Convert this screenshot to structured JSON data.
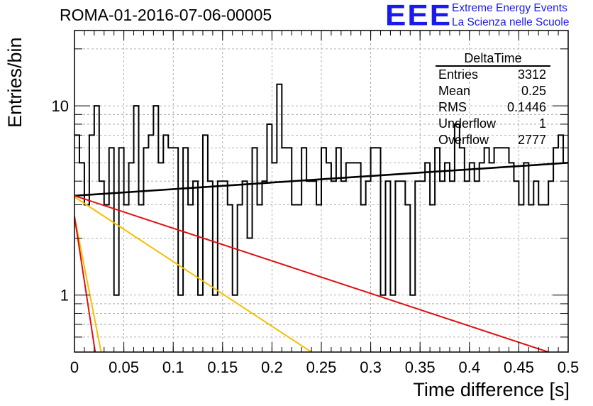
{
  "header": {
    "title": "ROMA-01-2016-07-06-00005",
    "logo_text": "EEE",
    "logo_line1": "Extreme Energy Events",
    "logo_line2": "La Scienza nelle Scuole"
  },
  "stats_box": {
    "name": "DeltaTime",
    "rows": [
      {
        "label": "Entries",
        "value": "3312"
      },
      {
        "label": "Mean",
        "value": "0.25"
      },
      {
        "label": "RMS",
        "value": "0.1446"
      },
      {
        "label": "Underflow",
        "value": "1"
      },
      {
        "label": "Overflow",
        "value": "2777"
      }
    ]
  },
  "colors": {
    "histogram": "#000000",
    "fit_black": "#000000",
    "fit_red": "#e01010",
    "fit_yellow": "#f5c000",
    "grid": "#9a9a9a"
  },
  "chart_data": {
    "type": "line",
    "title": "ROMA-01-2016-07-06-00005",
    "xlabel": "Time difference [s]",
    "ylabel": "Entries/bin",
    "xlim": [
      0,
      0.5
    ],
    "ylim": [
      0.5,
      25
    ],
    "yscale": "log",
    "grid": true,
    "legend": "top-right",
    "x_ticks": [
      "0",
      "0.05",
      "0.1",
      "0.15",
      "0.2",
      "0.25",
      "0.3",
      "0.35",
      "0.4",
      "0.45",
      "0.5"
    ],
    "y_ticks": [
      "1",
      "10"
    ],
    "histogram": {
      "bin_width": 0.005,
      "values": [
        7,
        5,
        3,
        7,
        10,
        4,
        3,
        6,
        1,
        6,
        3,
        5,
        10,
        3,
        6,
        7,
        10,
        5,
        7,
        6,
        6,
        1,
        6,
        3,
        4,
        1,
        7,
        4,
        1,
        4,
        4,
        3,
        1,
        3,
        4,
        2,
        6,
        3,
        4,
        8,
        5,
        13,
        6,
        6,
        3,
        3,
        6,
        4,
        4,
        3,
        6,
        5,
        4,
        6,
        4,
        5,
        5,
        5,
        3,
        4,
        6,
        6,
        1,
        4,
        1,
        4,
        4,
        3,
        1,
        4,
        4,
        5,
        3,
        6,
        4,
        5,
        4,
        8,
        6,
        4,
        5,
        4,
        5,
        6,
        5,
        6,
        6,
        6,
        5,
        4,
        3,
        5,
        3,
        4,
        3,
        3,
        4,
        6,
        7,
        5
      ]
    },
    "series": [
      {
        "color": "#000000",
        "x": [
          0,
          0.5
        ],
        "y": [
          3.35,
          5.0
        ]
      },
      {
        "color": "#e01010",
        "x": [
          0,
          0.48
        ],
        "y": [
          3.35,
          0.5
        ]
      },
      {
        "color": "#f5c000",
        "x": [
          0,
          0.24
        ],
        "y": [
          3.3,
          0.5
        ]
      },
      {
        "color": "#f5c000",
        "x": [
          0,
          0.027
        ],
        "y": [
          2.6,
          0.5
        ]
      },
      {
        "color": "#e01010",
        "x": [
          0,
          0.021
        ],
        "y": [
          2.6,
          0.5
        ]
      }
    ]
  }
}
